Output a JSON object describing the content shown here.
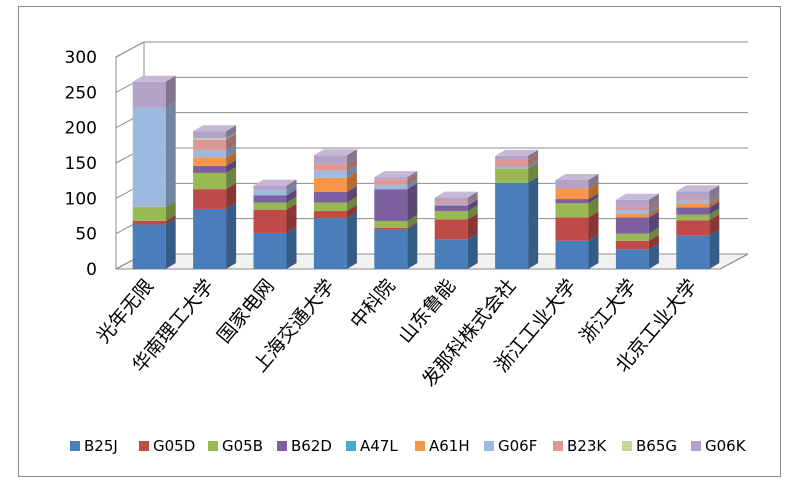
{
  "chart_data": {
    "type": "bar",
    "stacked": true,
    "style": "3d",
    "title": "",
    "xlabel": "",
    "ylabel": "",
    "ylim": [
      0,
      300
    ],
    "yticks": [
      0,
      50,
      100,
      150,
      200,
      250,
      300
    ],
    "grid": true,
    "legend_position": "bottom",
    "categories": [
      "光年无限",
      "华南理工大学",
      "国家电网",
      "上海交通大学",
      "中科院",
      "山东鲁能",
      "发那科株式会社",
      "浙江工业大学",
      "浙江大学",
      "北京工业大学"
    ],
    "series": [
      {
        "name": "B25J",
        "color": "#4a7ebb",
        "values": [
          63,
          85,
          51,
          72,
          56,
          42,
          122,
          40,
          28,
          47
        ]
      },
      {
        "name": "G05D",
        "color": "#be4b48",
        "values": [
          5,
          28,
          33,
          10,
          2,
          28,
          0,
          33,
          12,
          22
        ]
      },
      {
        "name": "G05B",
        "color": "#98b954",
        "values": [
          20,
          23,
          10,
          12,
          10,
          12,
          20,
          20,
          10,
          8
        ]
      },
      {
        "name": "B62D",
        "color": "#7d60a0",
        "values": [
          0,
          10,
          10,
          15,
          45,
          8,
          0,
          6,
          23,
          10
        ]
      },
      {
        "name": "A47L",
        "color": "#46aac5",
        "values": [
          0,
          0,
          0,
          0,
          0,
          0,
          0,
          0,
          0,
          0
        ]
      },
      {
        "name": "A61H",
        "color": "#f79646",
        "values": [
          0,
          12,
          0,
          20,
          0,
          0,
          0,
          15,
          5,
          5
        ]
      },
      {
        "name": "G06F",
        "color": "#9db9e0",
        "values": [
          140,
          10,
          8,
          10,
          6,
          2,
          3,
          0,
          5,
          5
        ]
      },
      {
        "name": "B23K",
        "color": "#dc9896",
        "values": [
          0,
          15,
          0,
          10,
          8,
          4,
          10,
          0,
          5,
          3
        ]
      },
      {
        "name": "B65G",
        "color": "#c3d69b",
        "values": [
          0,
          2,
          0,
          0,
          0,
          0,
          0,
          0,
          0,
          0
        ]
      },
      {
        "name": "G06K",
        "color": "#b3a2c7",
        "values": [
          37,
          10,
          6,
          12,
          3,
          5,
          5,
          12,
          10,
          10
        ]
      }
    ]
  }
}
